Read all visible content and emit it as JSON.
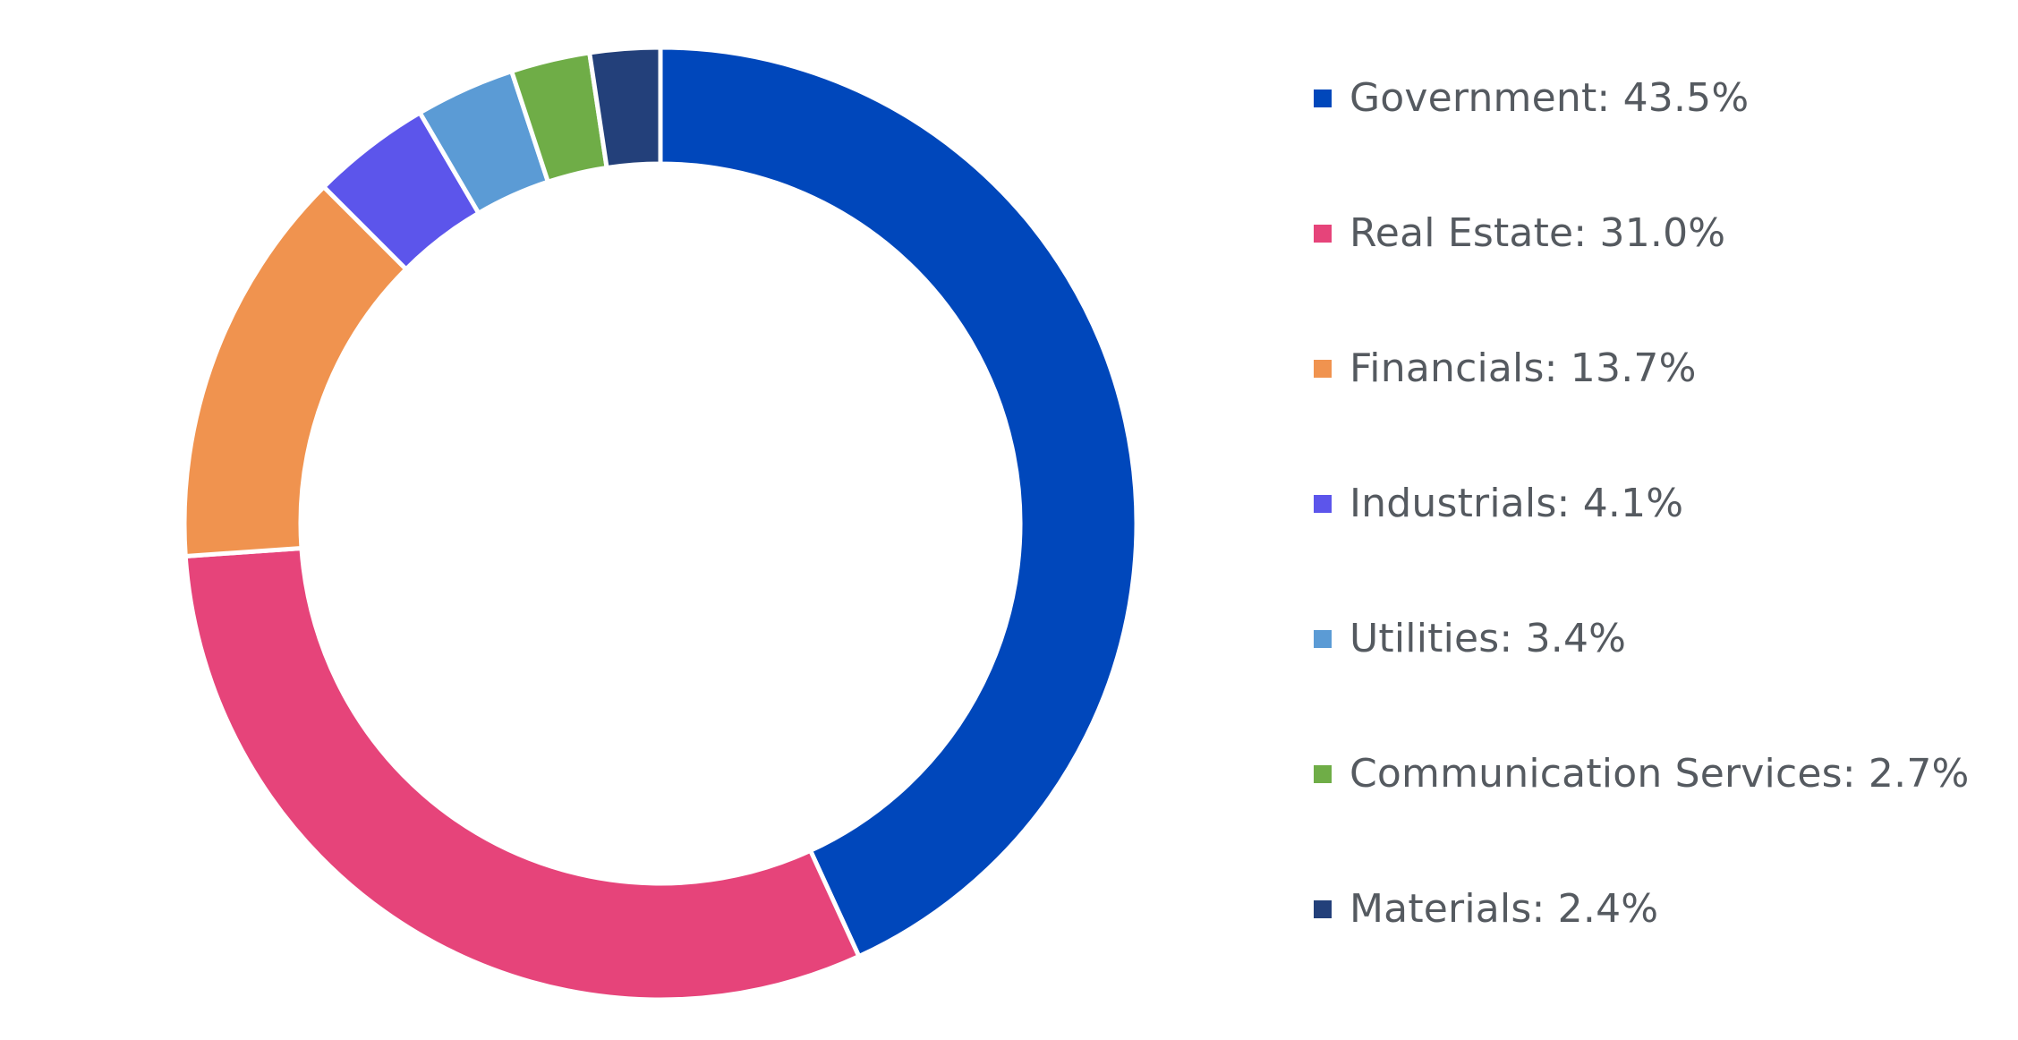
{
  "chart_data": {
    "type": "pie",
    "variant": "donut",
    "categories": [
      "Government",
      "Real Estate",
      "Financials",
      "Industrials",
      "Utilities",
      "Communication Services",
      "Materials"
    ],
    "values": [
      43.5,
      31.0,
      13.7,
      4.1,
      3.4,
      2.7,
      2.4
    ],
    "colors": [
      "#0047BB",
      "#E6447A",
      "#F0934F",
      "#5C55EB",
      "#5B9BD5",
      "#6FAD47",
      "#23407A"
    ],
    "legend_labels": [
      "Government: 43.5%",
      "Real Estate: 31.0%",
      "Financials: 13.7%",
      "Industrials: 4.1%",
      "Utilities: 3.4%",
      "Communication Services: 2.7%",
      "Materials: 2.4%"
    ],
    "title": "",
    "legend_position": "right",
    "start_angle": "top",
    "direction": "clockwise"
  }
}
